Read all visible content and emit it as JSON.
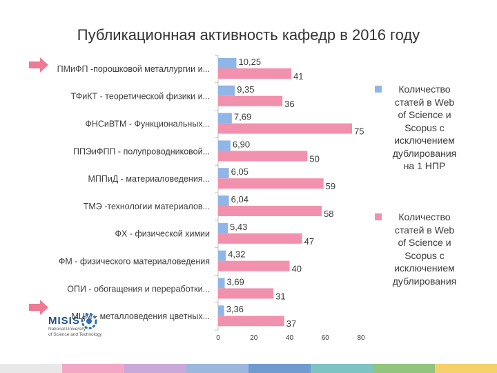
{
  "title": "Публикационная активность кафедр в 2016 году",
  "colors": {
    "series1": "#8fb6e6",
    "series2": "#f291ad",
    "axis": "#bfbfbf"
  },
  "chart_data": {
    "type": "bar",
    "orientation": "horizontal",
    "categories": [
      "ПМиФП  -порошковой металлургии и...",
      "ТФиКТ - теоретической физики и...",
      "ФНСиВТМ - Функциональных...",
      "ППЭиФПП - полупроводниковой...",
      "МППиД - материаловедения...",
      "ТМЭ  -технологии материалов...",
      "ФХ - физической химии",
      "ФМ - физического материаловедения",
      "ОПИ - обогащения и переработки...",
      "МЦМ - металловедения цветных..."
    ],
    "series": [
      {
        "name": "Количество статей в Web of Science и Scopus с исключением дублирования на 1 НПР",
        "values": [
          10.25,
          9.35,
          7.69,
          6.9,
          6.05,
          6.04,
          5.43,
          4.32,
          3.69,
          3.36
        ],
        "labels": [
          "10,25",
          "9,35",
          "7,69",
          "6,90",
          "6,05",
          "6,04",
          "5,43",
          "4,32",
          "3,69",
          "3,36"
        ]
      },
      {
        "name": "Количество статей в Web of Science и Scopus с исключением дублирования",
        "values": [
          41,
          36,
          75,
          50,
          59,
          58,
          47,
          40,
          31,
          37
        ],
        "labels": [
          "41",
          "36",
          "75",
          "50",
          "59",
          "58",
          "47",
          "40",
          "31",
          "37"
        ]
      }
    ],
    "xticks": [
      "0",
      "20",
      "40",
      "60",
      "80"
    ],
    "xlim": [
      0,
      80
    ],
    "grid": false,
    "legend_position": "right"
  },
  "legend": {
    "item1_lines": [
      "Количество",
      "статей в Web",
      "of Science и",
      "Scopus с",
      "исключением",
      "дублирования",
      "на 1 НПР"
    ],
    "item2_lines": [
      "Количество",
      "статей в Web",
      "of Science и",
      "Scopus с",
      "исключением",
      "дублирования"
    ]
  },
  "highlighted_rows": [
    0,
    9
  ],
  "logo": {
    "word": "MISIS",
    "sub_lines": [
      "National University",
      "of Science and Technology"
    ]
  },
  "footer_colors": [
    "#e8e8e8",
    "#f4a7c4",
    "#c9a9d9",
    "#9bb7de",
    "#6f9bd1",
    "#7ec3c3",
    "#93c47d",
    "#f6d16a"
  ]
}
